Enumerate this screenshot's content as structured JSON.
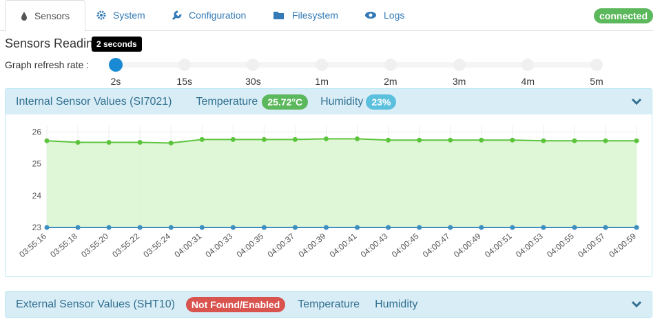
{
  "nav": {
    "tabs": [
      "Sensors",
      "System",
      "Configuration",
      "Filesystem",
      "Logs"
    ],
    "status": "connected"
  },
  "heading": "Sensors Readings",
  "refresh": {
    "label": "Graph refresh rate :",
    "tooltip": "2 seconds",
    "options": [
      "2s",
      "15s",
      "30s",
      "1m",
      "2m",
      "3m",
      "4m",
      "5m"
    ]
  },
  "internal_panel": {
    "title": "Internal Sensor Values (SI7021)",
    "temperature_badge": "25.72°C",
    "humidity_badge": "23%"
  },
  "chart_data": {
    "type": "line",
    "categories": [
      "03:55:16",
      "03:55:18",
      "03:55:20",
      "03:55:22",
      "03:55:24",
      "04:00:31",
      "04:00:33",
      "04:00:35",
      "04:00:37",
      "04:00:39",
      "04:00:41",
      "04:00:43",
      "04:00:45",
      "04:00:47",
      "04:00:49",
      "04:00:51",
      "04:00:53",
      "04:00:55",
      "04:00:57",
      "04:00:59"
    ],
    "series": [
      {
        "name": "Temperature",
        "color": "#5cc43c",
        "fill": "#dcf5d3",
        "values": [
          25.72,
          25.67,
          25.67,
          25.67,
          25.65,
          25.76,
          25.76,
          25.76,
          25.76,
          25.78,
          25.78,
          25.74,
          25.74,
          25.74,
          25.74,
          25.74,
          25.72,
          25.72,
          25.72,
          25.72
        ]
      },
      {
        "name": "Humidity",
        "color": "#3d8fbf",
        "values": [
          23,
          23,
          23,
          23,
          23,
          23,
          23,
          23,
          23,
          23,
          23,
          23,
          23,
          23,
          23,
          23,
          23,
          23,
          23,
          23
        ]
      }
    ],
    "ylim": [
      23,
      26.2
    ],
    "yticks": [
      23,
      24,
      25,
      26
    ],
    "grid": true
  },
  "external_panel": {
    "title": "External Sensor Values (SHT10)",
    "status_badge": "Not Found/Enabled",
    "temperature_label": "Temperature",
    "humidity_label": "Humidity"
  }
}
